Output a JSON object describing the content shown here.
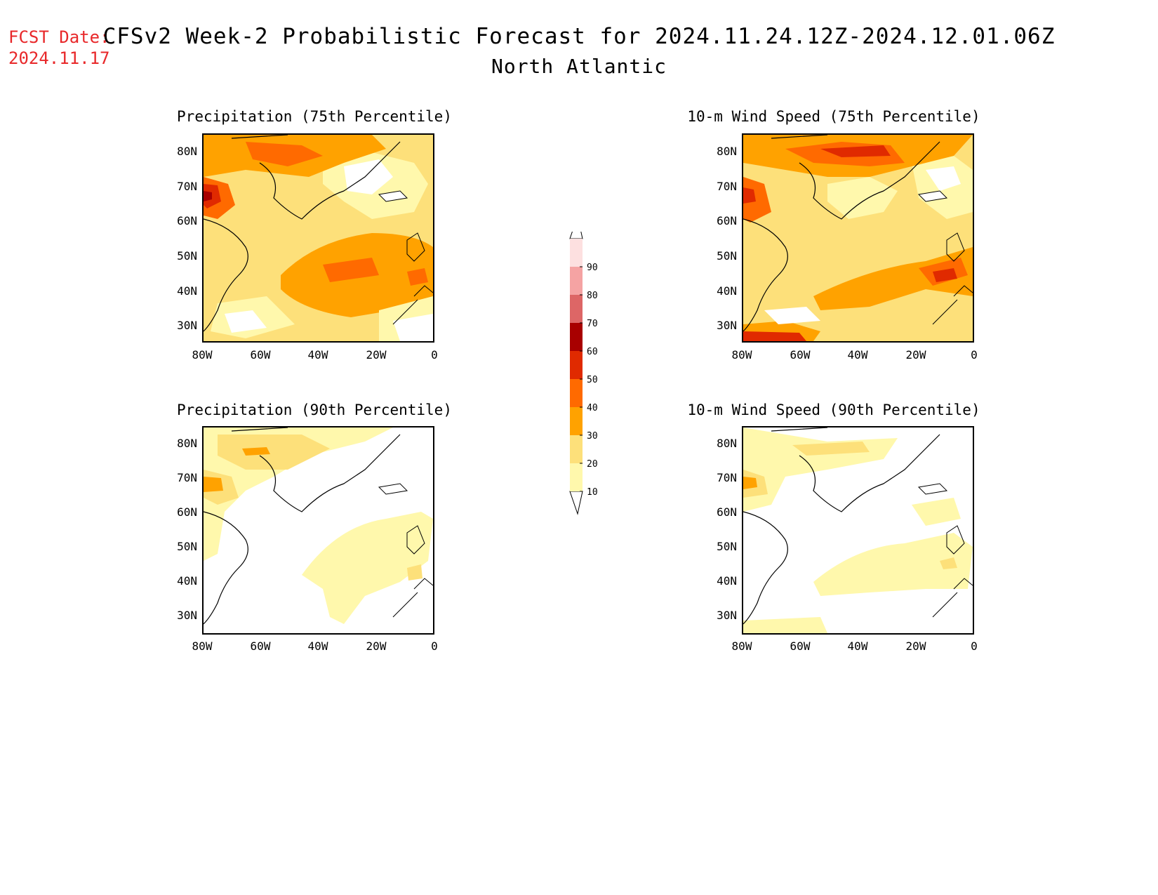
{
  "header": {
    "fcst_label": "FCST Date:",
    "fcst_date": "2024.11.17",
    "title": "CFSv2 Week-2 Probabilistic Forecast for 2024.11.24.12Z-2024.12.01.06Z",
    "subtitle": "North Atlantic"
  },
  "panels": [
    {
      "title": "Precipitation (75th Percentile)"
    },
    {
      "title": "10-m Wind Speed (75th Percentile)"
    },
    {
      "title": "Precipitation (90th Percentile)"
    },
    {
      "title": "10-m Wind Speed (90th Percentile)"
    }
  ],
  "axes": {
    "lat_labels": [
      "80N",
      "70N",
      "60N",
      "50N",
      "40N",
      "30N"
    ],
    "lon_labels": [
      "80W",
      "60W",
      "40W",
      "20W",
      "0"
    ]
  },
  "colorbar": {
    "levels": [
      "10",
      "20",
      "30",
      "40",
      "50",
      "60",
      "70",
      "80",
      "90"
    ],
    "colors": [
      "#fff8ac",
      "#fde07a",
      "#ffa200",
      "#ff6a00",
      "#e02a00",
      "#a80000",
      "#dd6666",
      "#f5a3a3",
      "#fde0e0"
    ]
  }
}
